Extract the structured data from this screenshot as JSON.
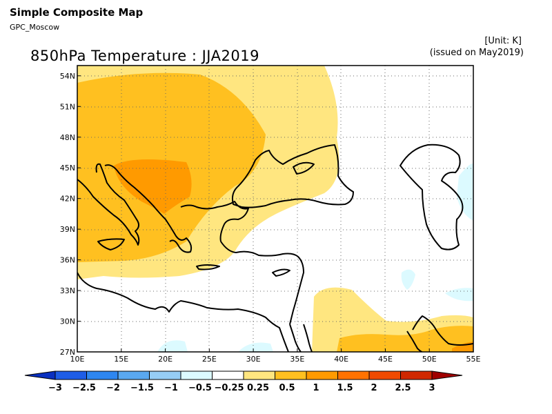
{
  "header": {
    "title": "Simple Composite Map",
    "source": "GPC_Moscow",
    "unit": "[Unit: K]",
    "issued": "(issued on May2019)"
  },
  "map": {
    "title": "850hPa Temperature : JJA2019",
    "lon_range": [
      10,
      55
    ],
    "lat_range": [
      27,
      55
    ],
    "lon_ticks": [
      "10E",
      "15E",
      "20E",
      "25E",
      "30E",
      "35E",
      "40E",
      "45E",
      "50E",
      "55E"
    ],
    "lat_ticks": [
      "27N",
      "30N",
      "33N",
      "36N",
      "39N",
      "42N",
      "45N",
      "48N",
      "51N",
      "54N"
    ],
    "grid": "dotted"
  },
  "colorbar": {
    "labels": [
      "−3",
      "−2.5",
      "−2",
      "−1.5",
      "−1",
      "−0.5",
      "−0.25",
      "0.25",
      "0.5",
      "1",
      "1.5",
      "2",
      "2.5",
      "3"
    ],
    "colors": [
      "#0a30c0",
      "#1e5de6",
      "#2e86f0",
      "#5aa8f0",
      "#96cdf5",
      "#dcfaff",
      "#ffffff",
      "#ffe680",
      "#ffc020",
      "#ff9a00",
      "#ff7200",
      "#f04a00",
      "#d02800",
      "#a00000"
    ]
  }
}
